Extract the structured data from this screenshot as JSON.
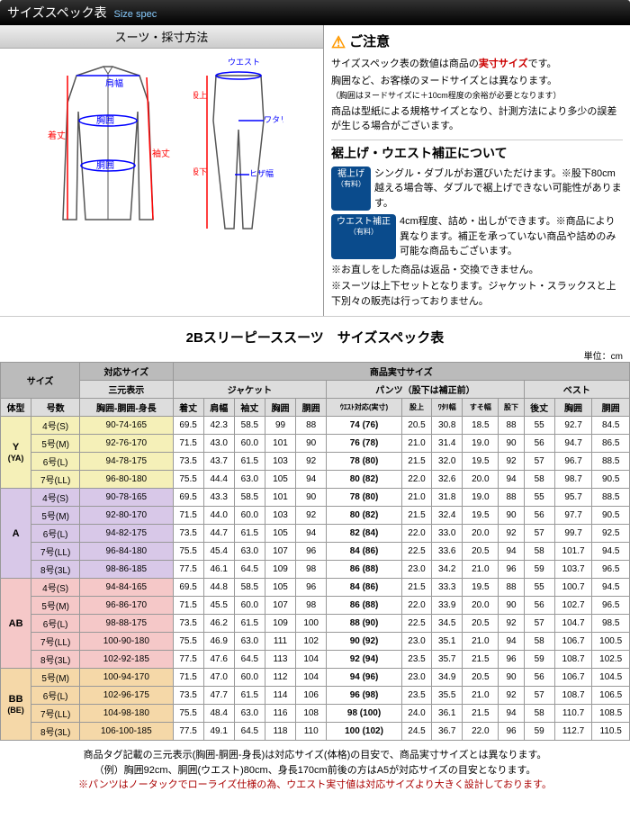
{
  "header": {
    "title": "サイズスペック表",
    "title_en": "Size spec"
  },
  "diagram": {
    "title": "スーツ・採寸方法",
    "labels": {
      "kitake": "着丈",
      "katahaba": "肩幅",
      "kyoui": "胸囲",
      "doui": "胴囲",
      "sodetake": "袖丈",
      "waist": "ウエスト",
      "matagami": "股上",
      "watari": "ワタリ幅",
      "matashita": "股下",
      "hizahaba": "ヒザ幅"
    }
  },
  "notes": {
    "warn_title": "ご注意",
    "line1a": "サイズスペック表の数値は商品の",
    "line1b": "実寸サイズ",
    "line1c": "です。",
    "line2": "胸囲など、お客様のヌードサイズとは異なります。",
    "line3": "（胸囲はヌードサイズに＋10cm程度の余裕が必要となります）",
    "line4": "商品は型紙による規格サイズとなり、計測方法により多少の誤差が生じる場合がございます。",
    "sub_title": "裾上げ・ウエスト補正について",
    "badge1": "裾上げ",
    "badge1_sub": "（有料）",
    "b1_text": "シングル・ダブルがお選びいただけます。※股下80cm越える場合等、ダブルで裾上げできない可能性があります。",
    "badge2": "ウエスト補正",
    "badge2_sub": "（有料）",
    "b2_text": "4cm程度、詰め・出しができます。※商品により異なります。補正を承っていない商品や詰めのみ可能な商品もございます。",
    "note_a": "※お直しをした商品は返品・交換できません。",
    "note_b": "※スーツは上下セットとなります。ジャケット・スラックスと上下別々の販売は行っておりません。"
  },
  "table": {
    "title": "2Bスリーピーススーツ　サイズスペック表",
    "unit": "単位：cm",
    "headers": {
      "size": "サイズ",
      "taiou": "対応サイズ",
      "actual": "商品実寸サイズ",
      "sangen": "三元表示",
      "jacket": "ジャケット",
      "pants": "パンツ（股下は補正前）",
      "vest": "ベスト",
      "taikei": "体型",
      "gou": "号数",
      "sangen_sub": "胸囲-胴囲-身長",
      "j": [
        "着丈",
        "肩幅",
        "袖丈",
        "胸囲",
        "胴囲"
      ],
      "p": [
        "ｳｴｽﾄ対応(実寸)",
        "股上",
        "ﾜﾀﾘ幅",
        "すそ幅",
        "股下"
      ],
      "v": [
        "後丈",
        "胸囲",
        "胴囲"
      ]
    },
    "groups": [
      {
        "cls": "tai-y",
        "name": "Y",
        "sub": "(YA)",
        "rows": [
          {
            "g": "4号(S)",
            "s": "90-74-165",
            "j": [
              "69.5",
              "42.3",
              "58.5",
              "99",
              "88"
            ],
            "p": [
              "74 (76)",
              "20.5",
              "30.8",
              "18.5",
              "88"
            ],
            "v": [
              "55",
              "92.7",
              "84.5"
            ]
          },
          {
            "g": "5号(M)",
            "s": "92-76-170",
            "j": [
              "71.5",
              "43.0",
              "60.0",
              "101",
              "90"
            ],
            "p": [
              "76 (78)",
              "21.0",
              "31.4",
              "19.0",
              "90"
            ],
            "v": [
              "56",
              "94.7",
              "86.5"
            ]
          },
          {
            "g": "6号(L)",
            "s": "94-78-175",
            "j": [
              "73.5",
              "43.7",
              "61.5",
              "103",
              "92"
            ],
            "p": [
              "78 (80)",
              "21.5",
              "32.0",
              "19.5",
              "92"
            ],
            "v": [
              "57",
              "96.7",
              "88.5"
            ]
          },
          {
            "g": "7号(LL)",
            "s": "96-80-180",
            "j": [
              "75.5",
              "44.4",
              "63.0",
              "105",
              "94"
            ],
            "p": [
              "80 (82)",
              "22.0",
              "32.6",
              "20.0",
              "94"
            ],
            "v": [
              "58",
              "98.7",
              "90.5"
            ]
          }
        ]
      },
      {
        "cls": "tai-a",
        "name": "A",
        "sub": "",
        "rows": [
          {
            "g": "4号(S)",
            "s": "90-78-165",
            "j": [
              "69.5",
              "43.3",
              "58.5",
              "101",
              "90"
            ],
            "p": [
              "78 (80)",
              "21.0",
              "31.8",
              "19.0",
              "88"
            ],
            "v": [
              "55",
              "95.7",
              "88.5"
            ]
          },
          {
            "g": "5号(M)",
            "s": "92-80-170",
            "j": [
              "71.5",
              "44.0",
              "60.0",
              "103",
              "92"
            ],
            "p": [
              "80 (82)",
              "21.5",
              "32.4",
              "19.5",
              "90"
            ],
            "v": [
              "56",
              "97.7",
              "90.5"
            ]
          },
          {
            "g": "6号(L)",
            "s": "94-82-175",
            "j": [
              "73.5",
              "44.7",
              "61.5",
              "105",
              "94"
            ],
            "p": [
              "82 (84)",
              "22.0",
              "33.0",
              "20.0",
              "92"
            ],
            "v": [
              "57",
              "99.7",
              "92.5"
            ]
          },
          {
            "g": "7号(LL)",
            "s": "96-84-180",
            "j": [
              "75.5",
              "45.4",
              "63.0",
              "107",
              "96"
            ],
            "p": [
              "84 (86)",
              "22.5",
              "33.6",
              "20.5",
              "94"
            ],
            "v": [
              "58",
              "101.7",
              "94.5"
            ]
          },
          {
            "g": "8号(3L)",
            "s": "98-86-185",
            "j": [
              "77.5",
              "46.1",
              "64.5",
              "109",
              "98"
            ],
            "p": [
              "86 (88)",
              "23.0",
              "34.2",
              "21.0",
              "96"
            ],
            "v": [
              "59",
              "103.7",
              "96.5"
            ]
          }
        ]
      },
      {
        "cls": "tai-ab",
        "name": "AB",
        "sub": "",
        "rows": [
          {
            "g": "4号(S)",
            "s": "94-84-165",
            "j": [
              "69.5",
              "44.8",
              "58.5",
              "105",
              "96"
            ],
            "p": [
              "84 (86)",
              "21.5",
              "33.3",
              "19.5",
              "88"
            ],
            "v": [
              "55",
              "100.7",
              "94.5"
            ]
          },
          {
            "g": "5号(M)",
            "s": "96-86-170",
            "j": [
              "71.5",
              "45.5",
              "60.0",
              "107",
              "98"
            ],
            "p": [
              "86 (88)",
              "22.0",
              "33.9",
              "20.0",
              "90"
            ],
            "v": [
              "56",
              "102.7",
              "96.5"
            ]
          },
          {
            "g": "6号(L)",
            "s": "98-88-175",
            "j": [
              "73.5",
              "46.2",
              "61.5",
              "109",
              "100"
            ],
            "p": [
              "88 (90)",
              "22.5",
              "34.5",
              "20.5",
              "92"
            ],
            "v": [
              "57",
              "104.7",
              "98.5"
            ]
          },
          {
            "g": "7号(LL)",
            "s": "100-90-180",
            "j": [
              "75.5",
              "46.9",
              "63.0",
              "111",
              "102"
            ],
            "p": [
              "90 (92)",
              "23.0",
              "35.1",
              "21.0",
              "94"
            ],
            "v": [
              "58",
              "106.7",
              "100.5"
            ]
          },
          {
            "g": "8号(3L)",
            "s": "102-92-185",
            "j": [
              "77.5",
              "47.6",
              "64.5",
              "113",
              "104"
            ],
            "p": [
              "92 (94)",
              "23.5",
              "35.7",
              "21.5",
              "96"
            ],
            "v": [
              "59",
              "108.7",
              "102.5"
            ]
          }
        ]
      },
      {
        "cls": "tai-bb",
        "name": "BB",
        "sub": "(BE)",
        "rows": [
          {
            "g": "5号(M)",
            "s": "100-94-170",
            "j": [
              "71.5",
              "47.0",
              "60.0",
              "112",
              "104"
            ],
            "p": [
              "94 (96)",
              "23.0",
              "34.9",
              "20.5",
              "90"
            ],
            "v": [
              "56",
              "106.7",
              "104.5"
            ]
          },
          {
            "g": "6号(L)",
            "s": "102-96-175",
            "j": [
              "73.5",
              "47.7",
              "61.5",
              "114",
              "106"
            ],
            "p": [
              "96 (98)",
              "23.5",
              "35.5",
              "21.0",
              "92"
            ],
            "v": [
              "57",
              "108.7",
              "106.5"
            ]
          },
          {
            "g": "7号(LL)",
            "s": "104-98-180",
            "j": [
              "75.5",
              "48.4",
              "63.0",
              "116",
              "108"
            ],
            "p": [
              "98 (100)",
              "24.0",
              "36.1",
              "21.5",
              "94"
            ],
            "v": [
              "58",
              "110.7",
              "108.5"
            ]
          },
          {
            "g": "8号(3L)",
            "s": "106-100-185",
            "j": [
              "77.5",
              "49.1",
              "64.5",
              "118",
              "110"
            ],
            "p": [
              "100 (102)",
              "24.5",
              "36.7",
              "22.0",
              "96"
            ],
            "v": [
              "59",
              "112.7",
              "110.5"
            ]
          }
        ]
      }
    ]
  },
  "footer": {
    "l1": "商品タグ記載の三元表示(胸囲-胴囲-身長)は対応サイズ(体格)の目安で、商品実寸サイズとは異なります。",
    "l2": "（例）胸囲92cm、胴囲(ウエスト)80cm、身長170cm前後の方はA5が対応サイズの目安となります。",
    "l3": "※パンツはノータックでローライズ仕様の為、ウエスト実寸値は対応サイズより大きく設計しております。"
  }
}
